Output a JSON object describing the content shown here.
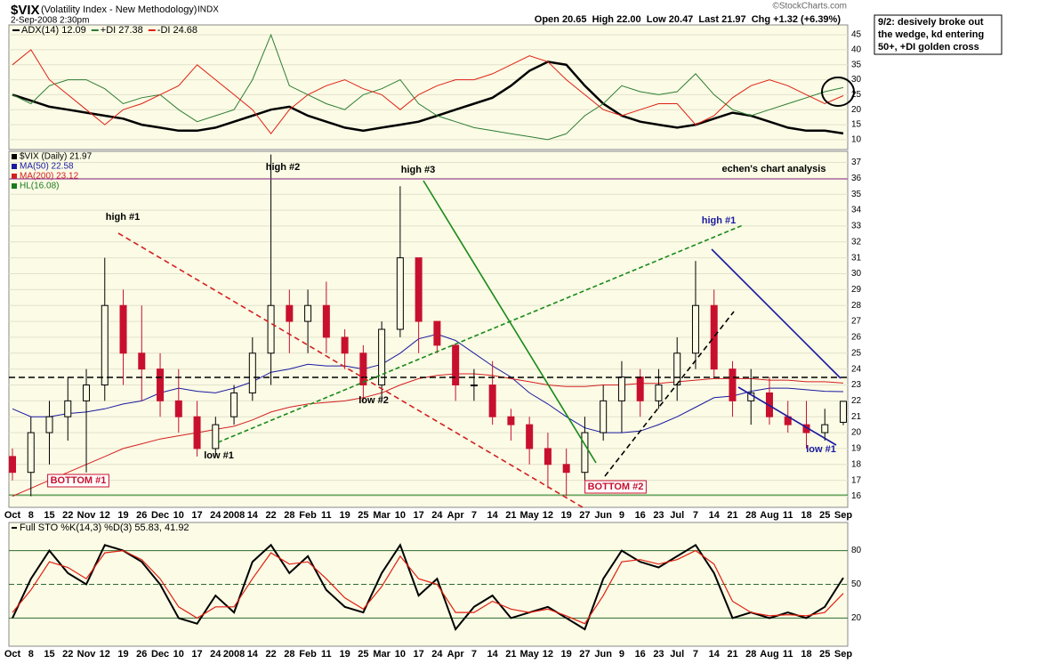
{
  "header": {
    "symbol": "$VIX",
    "name": "(Volatility Index - New Methodology)",
    "exchange": "INDX",
    "date": "2-Sep-2008 2:30pm",
    "quote": "Open 20.65  High 22.00  Low 20.47  Last 21.97  Chg +1.32 (+6.39%)",
    "credit": "©StockCharts.com"
  },
  "note": {
    "lines": [
      "9/2: desively broke out",
      "the wedge, kd entering",
      "50+, +DI golden cross"
    ]
  },
  "chart_data": [
    {
      "type": "line",
      "ylim": [
        6.7,
        48.3
      ],
      "yticks": [
        10,
        15,
        20,
        25,
        30,
        35,
        40,
        45
      ],
      "series": [
        {
          "name": "ADX(14) 12.09",
          "color": "#000000",
          "width": 2.5,
          "values": [
            25,
            23,
            21,
            20,
            19,
            18,
            17,
            15,
            14,
            13,
            13,
            14,
            16,
            18,
            20,
            21,
            18,
            16,
            14,
            13,
            14,
            15,
            16,
            18,
            20,
            22,
            24,
            28,
            33,
            36,
            35,
            28,
            22,
            18,
            16,
            15,
            14,
            15,
            17,
            19,
            18,
            16,
            14,
            13,
            13,
            12.09
          ]
        },
        {
          "name": "+DI 27.38",
          "color": "#2e7d32",
          "width": 1,
          "values": [
            25,
            22,
            28,
            30,
            30,
            27,
            22,
            24,
            25,
            20,
            16,
            18,
            20,
            30,
            45,
            28,
            25,
            22,
            20,
            25,
            27,
            30,
            22,
            18,
            16,
            14,
            13,
            12,
            11,
            10,
            12,
            18,
            22,
            28,
            26,
            25,
            26,
            32,
            25,
            20,
            18,
            20,
            22,
            24,
            26,
            27.38
          ]
        },
        {
          "name": "-DI 24.68",
          "color": "#e02010",
          "width": 1,
          "values": [
            35,
            40,
            30,
            25,
            20,
            15,
            20,
            22,
            25,
            28,
            35,
            30,
            25,
            20,
            12,
            20,
            25,
            28,
            30,
            27,
            25,
            20,
            25,
            28,
            30,
            30,
            32,
            35,
            38,
            36,
            30,
            25,
            20,
            18,
            20,
            22,
            22,
            15,
            18,
            24,
            28,
            30,
            28,
            25,
            22,
            24.68
          ]
        }
      ]
    },
    {
      "type": "candlestick",
      "categories": [
        "Oct",
        "8",
        "15",
        "22",
        "Nov",
        "12",
        "19",
        "26",
        "Dec",
        "10",
        "17",
        "24",
        "2008",
        "14",
        "22",
        "28",
        "Feb",
        "11",
        "19",
        "25",
        "Mar",
        "10",
        "17",
        "24",
        "Apr",
        "7",
        "14",
        "21",
        "May",
        "12",
        "19",
        "27",
        "Jun",
        "9",
        "16",
        "23",
        "Jul",
        "7",
        "14",
        "21",
        "28",
        "Aug",
        "11",
        "18",
        "25",
        "Sep"
      ],
      "ylim": [
        15.3,
        37.7
      ],
      "yticks": [
        16,
        17,
        18,
        19,
        20,
        21,
        22,
        23,
        24,
        25,
        26,
        27,
        28,
        29,
        30,
        31,
        32,
        33,
        34,
        35,
        36,
        37
      ],
      "name": "$VIX (Daily) 21.97",
      "up_color": "#000000",
      "down_color": "#c8102e",
      "open": [
        18.5,
        17.5,
        20,
        21,
        22,
        23,
        28,
        25,
        24,
        22,
        21,
        19,
        21,
        22.5,
        25,
        28,
        27,
        28,
        26,
        25,
        23,
        26.5,
        31,
        27,
        25.5,
        23,
        23,
        21,
        20.5,
        19,
        18,
        17.5,
        20,
        22,
        23.5,
        22,
        23,
        25,
        28,
        24,
        22,
        22.5,
        21,
        20.5,
        20,
        20.65
      ],
      "high": [
        19,
        21,
        22,
        23.5,
        24,
        31,
        29,
        28,
        25,
        24,
        22,
        21,
        23,
        26,
        37.5,
        29,
        29,
        29.5,
        26.5,
        25.5,
        27,
        35.5,
        31,
        27,
        25.5,
        24,
        24.5,
        21.5,
        21,
        20,
        19,
        21,
        23,
        24.5,
        24,
        24,
        26,
        30.8,
        29,
        24.5,
        24,
        23.5,
        22,
        22,
        21.5,
        22
      ],
      "low": [
        17,
        16,
        18,
        19.5,
        17.5,
        22,
        23,
        22,
        21,
        20,
        18.5,
        18.5,
        20.5,
        22,
        23,
        25,
        25,
        25,
        24,
        22,
        22,
        26,
        25,
        25,
        22,
        22,
        20.5,
        19.5,
        18,
        16.5,
        16,
        17,
        19.5,
        20,
        21,
        21.5,
        22,
        24,
        23.5,
        21,
        20.5,
        20.5,
        20,
        19,
        19.5,
        20.47
      ],
      "close": [
        17.5,
        20,
        21,
        22,
        23,
        28,
        25,
        24,
        22,
        21,
        19,
        20.5,
        22.5,
        25,
        28,
        27,
        28,
        26,
        25,
        23,
        26.5,
        31,
        27,
        25.5,
        23,
        23,
        21,
        20.5,
        19,
        18,
        17.5,
        20,
        22,
        23.5,
        22,
        23,
        25,
        28,
        24,
        22,
        22.5,
        21,
        20.5,
        20,
        20.5,
        21.97
      ],
      "series": [
        {
          "name": "MA(50) 22.58",
          "color": "#1a1aa0",
          "values": [
            21.5,
            21,
            21,
            21.2,
            21.3,
            21.5,
            21.8,
            22,
            22.5,
            22.8,
            22.6,
            22.5,
            22.8,
            23.2,
            23.8,
            24,
            24.3,
            24.2,
            24.2,
            24,
            24.3,
            25,
            25.9,
            26.2,
            25.8,
            25,
            24.2,
            23.5,
            22.5,
            21.8,
            21,
            20.3,
            20,
            20,
            20.1,
            20.5,
            21,
            21.6,
            22.2,
            22.3,
            22.6,
            22.8,
            22.8,
            22.7,
            22.6,
            22.58
          ]
        },
        {
          "name": "MA(200) 23.12",
          "color": "#d42020",
          "values": [
            16,
            16.5,
            17,
            17.5,
            18,
            18.5,
            19,
            19.3,
            19.6,
            19.8,
            20,
            20.2,
            20.4,
            20.8,
            21.3,
            21.6,
            21.8,
            21.9,
            22,
            22.2,
            22.5,
            23,
            23.4,
            23.6,
            23.7,
            23.7,
            23.6,
            23.4,
            23.2,
            23,
            22.9,
            22.9,
            23,
            23,
            23.1,
            23.1,
            23.2,
            23.3,
            23.4,
            23.4,
            23.4,
            23.3,
            23.3,
            23.2,
            23.2,
            23.12
          ]
        }
      ],
      "hlines": [
        {
          "name": "HL(16.08)",
          "value": 16.08,
          "color": "#1a7a1a"
        }
      ],
      "annotations": [
        {
          "text": "high #1",
          "color": "#000000"
        },
        {
          "text": "high #2",
          "color": "#000000"
        },
        {
          "text": "high #3",
          "color": "#000000"
        },
        {
          "text": "low #2",
          "color": "#000000"
        },
        {
          "text": "low #1",
          "color": "#000000"
        },
        {
          "text": "BOTTOM #1",
          "color": "#c8102e"
        },
        {
          "text": "BOTTOM #2",
          "color": "#c8102e"
        },
        {
          "text": "high #1",
          "color": "#1a1aa0"
        },
        {
          "text": "low #1",
          "color": "#1a1aa0"
        },
        {
          "text": "echen's chart analysis",
          "color": "#000000"
        }
      ]
    },
    {
      "type": "line",
      "title": "Full STO %K(14,3) %D(3) 55.83, 41.92",
      "categories": [
        "Oct",
        "8",
        "15",
        "22",
        "Nov",
        "12",
        "19",
        "26",
        "Dec",
        "10",
        "17",
        "24",
        "2008",
        "14",
        "22",
        "28",
        "Feb",
        "11",
        "19",
        "25",
        "Mar",
        "10",
        "17",
        "24",
        "Apr",
        "7",
        "14",
        "21",
        "May",
        "12",
        "19",
        "27",
        "Jun",
        "9",
        "16",
        "23",
        "Jul",
        "7",
        "14",
        "21",
        "28",
        "Aug",
        "11",
        "18",
        "25",
        "Sep"
      ],
      "ylim": [
        -5,
        105
      ],
      "yticks": [
        20,
        50,
        80
      ],
      "series": [
        {
          "color": "#000000",
          "width": 2,
          "values": [
            20,
            55,
            80,
            60,
            50,
            85,
            80,
            70,
            50,
            20,
            15,
            40,
            25,
            70,
            85,
            60,
            75,
            45,
            30,
            25,
            60,
            85,
            40,
            55,
            10,
            30,
            40,
            20,
            25,
            30,
            20,
            10,
            55,
            80,
            70,
            65,
            75,
            85,
            60,
            20,
            25,
            20,
            25,
            20,
            30,
            55.83
          ]
        },
        {
          "color": "#e02010",
          "width": 1.2,
          "values": [
            25,
            45,
            70,
            65,
            55,
            78,
            80,
            72,
            55,
            30,
            20,
            30,
            30,
            55,
            78,
            68,
            70,
            55,
            38,
            28,
            48,
            75,
            55,
            50,
            25,
            25,
            35,
            28,
            25,
            28,
            22,
            15,
            40,
            70,
            72,
            68,
            72,
            80,
            68,
            35,
            25,
            22,
            23,
            22,
            25,
            41.92
          ]
        }
      ]
    }
  ]
}
